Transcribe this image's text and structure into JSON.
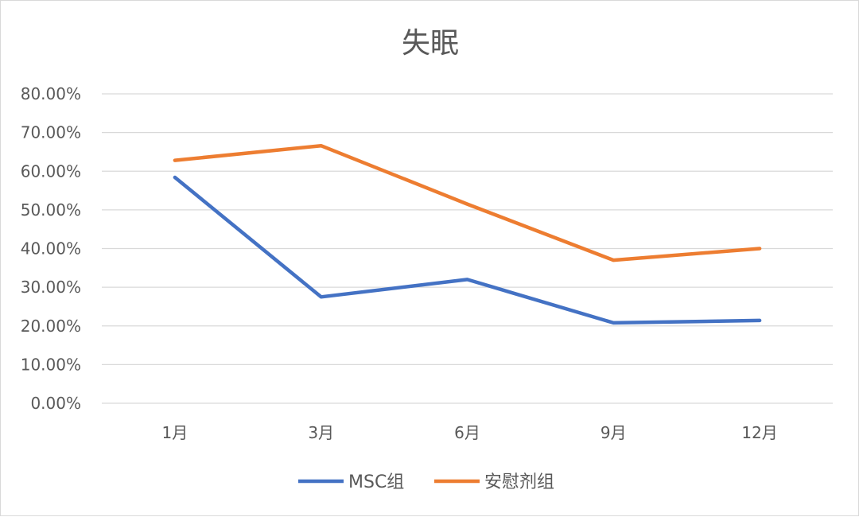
{
  "chart_data": {
    "type": "line",
    "title": "失眠",
    "xlabel": "",
    "ylabel": "",
    "categories": [
      "1月",
      "3月",
      "6月",
      "9月",
      "12月"
    ],
    "ylim": [
      0,
      0.8
    ],
    "yticks": [
      "0.00%",
      "10.00%",
      "20.00%",
      "30.00%",
      "40.00%",
      "50.00%",
      "60.00%",
      "70.00%",
      "80.00%"
    ],
    "grid": true,
    "legend_position": "bottom",
    "series": [
      {
        "name": "MSC组",
        "color": "#4472c4",
        "values": [
          0.584,
          0.275,
          0.32,
          0.208,
          0.214
        ]
      },
      {
        "name": "安慰剂组",
        "color": "#ed7d31",
        "values": [
          0.628,
          0.666,
          0.515,
          0.37,
          0.4
        ]
      }
    ]
  }
}
